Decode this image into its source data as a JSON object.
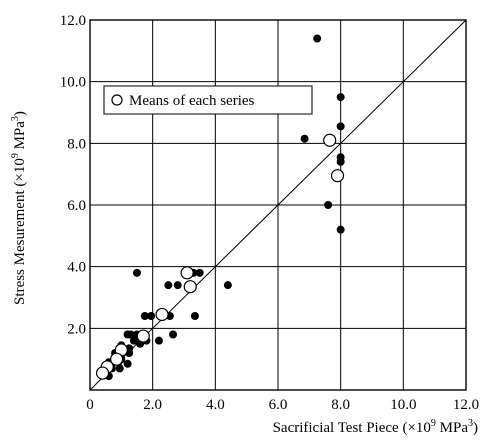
{
  "chart_data": {
    "type": "scatter",
    "xlabel": {
      "main": "Sacrificial Test Piece (×10",
      "exp1": "9",
      "mid": " MPa",
      "exp2": "3",
      "end": ")"
    },
    "ylabel": {
      "main": "Stress Mesurement (×10",
      "exp1": "9",
      "mid": " MPa",
      "exp2": "3",
      "end": ")"
    },
    "xlim": [
      0,
      12
    ],
    "ylim": [
      0,
      12
    ],
    "xticks": [
      "0",
      "2.0",
      "4.0",
      "6.0",
      "8.0",
      "10.0",
      "12.0"
    ],
    "yticks": [
      "2.0",
      "4.0",
      "6.0",
      "8.0",
      "10.0",
      "12.0"
    ],
    "grid": true,
    "reference_line": {
      "from": [
        0,
        0
      ],
      "to": [
        12,
        12
      ]
    },
    "legend": {
      "label": "Means of each series",
      "position": "top-left"
    },
    "series": [
      {
        "marker": "filled-circle",
        "points": [
          [
            7.25,
            11.4
          ],
          [
            8.0,
            9.5
          ],
          [
            8.0,
            8.55
          ],
          [
            6.85,
            8.15
          ],
          [
            8.0,
            7.55
          ],
          [
            8.0,
            7.4
          ],
          [
            7.6,
            6.0
          ],
          [
            8.0,
            5.2
          ],
          [
            1.5,
            3.8
          ],
          [
            2.5,
            3.4
          ],
          [
            2.8,
            3.4
          ],
          [
            3.3,
            3.8
          ],
          [
            3.5,
            3.8
          ],
          [
            4.4,
            3.4
          ],
          [
            1.75,
            2.4
          ],
          [
            1.95,
            2.4
          ],
          [
            2.55,
            2.4
          ],
          [
            3.35,
            2.4
          ],
          [
            2.2,
            1.6
          ],
          [
            2.65,
            1.8
          ],
          [
            1.2,
            1.8
          ],
          [
            1.3,
            1.8
          ],
          [
            1.5,
            1.8
          ],
          [
            1.4,
            1.6
          ],
          [
            1.8,
            1.6
          ],
          [
            1.6,
            1.5
          ],
          [
            1.0,
            1.45
          ],
          [
            1.25,
            1.35
          ],
          [
            1.25,
            1.2
          ],
          [
            0.8,
            1.2
          ],
          [
            1.0,
            1.0
          ],
          [
            0.9,
            0.9
          ],
          [
            1.2,
            0.85
          ],
          [
            0.6,
            0.9
          ],
          [
            0.5,
            0.8
          ],
          [
            0.7,
            0.7
          ],
          [
            0.95,
            0.7
          ],
          [
            0.55,
            0.6
          ],
          [
            0.35,
            0.5
          ],
          [
            0.6,
            0.45
          ]
        ]
      },
      {
        "name": "Means of each series",
        "marker": "open-circle",
        "points": [
          [
            7.65,
            8.1
          ],
          [
            7.9,
            6.95
          ],
          [
            3.1,
            3.8
          ],
          [
            3.2,
            3.35
          ],
          [
            2.3,
            2.45
          ],
          [
            1.7,
            1.75
          ],
          [
            1.0,
            1.3
          ],
          [
            0.85,
            1.0
          ],
          [
            0.55,
            0.75
          ],
          [
            0.4,
            0.55
          ]
        ]
      }
    ]
  }
}
